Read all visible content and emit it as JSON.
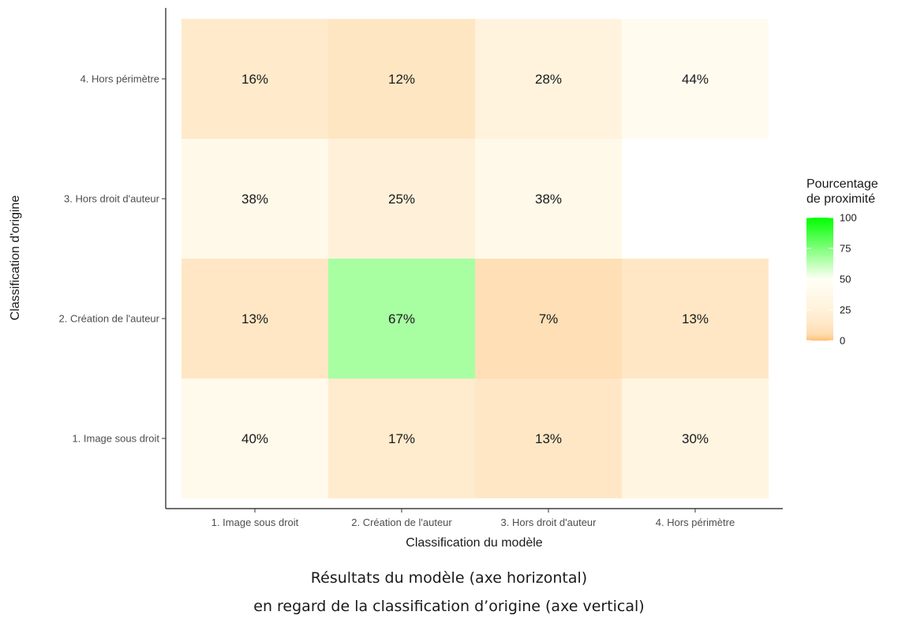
{
  "chart_data": {
    "type": "heatmap",
    "x_categories": [
      "1. Image sous droit",
      "2. Création de l'auteur",
      "3. Hors droit d'auteur",
      "4. Hors périmètre"
    ],
    "y_categories": [
      "1. Image sous droit",
      "2. Création de l'auteur",
      "3. Hors droit d'auteur",
      "4. Hors périmètre"
    ],
    "xlabel": "Classification du modèle",
    "ylabel": "Classification d'origine",
    "cells": [
      {
        "x": "1. Image sous droit",
        "y": "4. Hors périmètre",
        "value": 16,
        "label": "16%"
      },
      {
        "x": "2. Création de l'auteur",
        "y": "4. Hors périmètre",
        "value": 12,
        "label": "12%"
      },
      {
        "x": "3. Hors droit d'auteur",
        "y": "4. Hors périmètre",
        "value": 28,
        "label": "28%"
      },
      {
        "x": "4. Hors périmètre",
        "y": "4. Hors périmètre",
        "value": 44,
        "label": "44%"
      },
      {
        "x": "1. Image sous droit",
        "y": "3. Hors droit d'auteur",
        "value": 38,
        "label": "38%"
      },
      {
        "x": "2. Création de l'auteur",
        "y": "3. Hors droit d'auteur",
        "value": 25,
        "label": "25%"
      },
      {
        "x": "3. Hors droit d'auteur",
        "y": "3. Hors droit d'auteur",
        "value": 38,
        "label": "38%"
      },
      {
        "x": "1. Image sous droit",
        "y": "2. Création de l'auteur",
        "value": 13,
        "label": "13%"
      },
      {
        "x": "2. Création de l'auteur",
        "y": "2. Création de l'auteur",
        "value": 67,
        "label": "67%"
      },
      {
        "x": "3. Hors droit d'auteur",
        "y": "2. Création de l'auteur",
        "value": 7,
        "label": "7%"
      },
      {
        "x": "4. Hors périmètre",
        "y": "2. Création de l'auteur",
        "value": 13,
        "label": "13%"
      },
      {
        "x": "1. Image sous droit",
        "y": "1. Image sous droit",
        "value": 40,
        "label": "40%"
      },
      {
        "x": "2. Création de l'auteur",
        "y": "1. Image sous droit",
        "value": 17,
        "label": "17%"
      },
      {
        "x": "3. Hors droit d'auteur",
        "y": "1. Image sous droit",
        "value": 13,
        "label": "13%"
      },
      {
        "x": "4. Hors périmètre",
        "y": "1. Image sous droit",
        "value": 30,
        "label": "30%"
      }
    ],
    "legend": {
      "title_line1": "Pourcentage",
      "title_line2": "de proximité",
      "ticks": [
        0,
        25,
        50,
        75,
        100
      ],
      "range": [
        0,
        100
      ],
      "position": "right",
      "color_low": "#ffbf75",
      "color_mid": "#fffff5",
      "color_high": "#00ff00"
    },
    "grid": false
  },
  "caption": {
    "line1": "Résultats du modèle (axe horizontal)",
    "line2": "en regard de la classification d’origine (axe vertical)"
  }
}
